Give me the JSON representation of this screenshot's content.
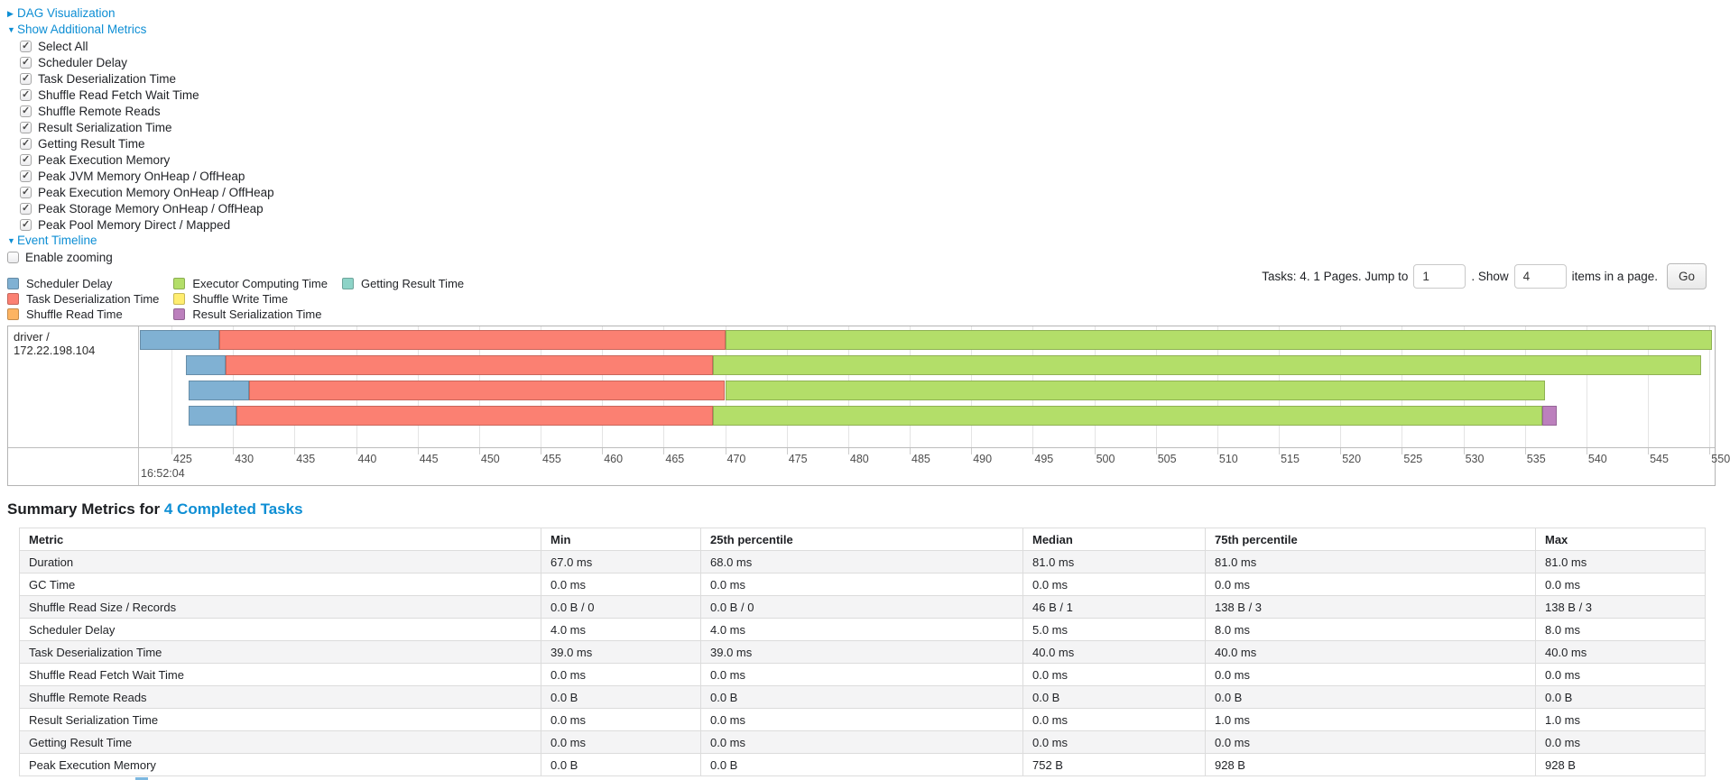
{
  "controls": {
    "collapsed_arrow": "▶",
    "expanded_arrow": "▼",
    "dag_link": "DAG Visualization",
    "metrics_link": "Show Additional Metrics",
    "timeline_link": "Event Timeline",
    "metric_checkboxes": [
      {
        "label": "Select All",
        "checked": true
      },
      {
        "label": "Scheduler Delay",
        "checked": true
      },
      {
        "label": "Task Deserialization Time",
        "checked": true
      },
      {
        "label": "Shuffle Read Fetch Wait Time",
        "checked": true
      },
      {
        "label": "Shuffle Remote Reads",
        "checked": true
      },
      {
        "label": "Result Serialization Time",
        "checked": true
      },
      {
        "label": "Getting Result Time",
        "checked": true
      },
      {
        "label": "Peak Execution Memory",
        "checked": true
      },
      {
        "label": "Peak JVM Memory OnHeap / OffHeap",
        "checked": true
      },
      {
        "label": "Peak Execution Memory OnHeap / OffHeap",
        "checked": true
      },
      {
        "label": "Peak Storage Memory OnHeap / OffHeap",
        "checked": true
      },
      {
        "label": "Peak Pool Memory Direct / Mapped",
        "checked": true
      }
    ],
    "enable_zooming": {
      "label": "Enable zooming",
      "checked": false
    }
  },
  "pagination": {
    "tasks_text": "Tasks: 4. 1 Pages. Jump to",
    "jump_value": "1",
    "show_text": ". Show",
    "show_value": "4",
    "items_text": "items in a page.",
    "go_label": "Go"
  },
  "chart_data": {
    "type": "timeline",
    "group_label": "driver / 172.22.198.104",
    "axis": {
      "unit": "ms",
      "start_label": "16:52:04",
      "ticks": [
        425,
        430,
        435,
        440,
        445,
        450,
        455,
        460,
        465,
        470,
        475,
        480,
        485,
        490,
        495,
        500,
        505,
        510,
        515,
        520,
        525,
        530,
        535,
        540,
        545,
        550
      ],
      "domain": [
        422.36,
        550.42
      ]
    },
    "legend": [
      {
        "key": "scheduler_delay",
        "label": "Scheduler Delay",
        "color": "#80B1D3"
      },
      {
        "key": "task_deserialization",
        "label": "Task Deserialization Time",
        "color": "#FB8072"
      },
      {
        "key": "shuffle_read",
        "label": "Shuffle Read Time",
        "color": "#FDB462"
      },
      {
        "key": "executor_computing",
        "label": "Executor Computing Time",
        "color": "#B3DE69"
      },
      {
        "key": "shuffle_write",
        "label": "Shuffle Write Time",
        "color": "#FFED6F"
      },
      {
        "key": "result_serialization",
        "label": "Result Serialization Time",
        "color": "#BC80BD"
      },
      {
        "key": "getting_result",
        "label": "Getting Result Time",
        "color": "#8DD3C7"
      }
    ],
    "tasks": [
      {
        "segments": [
          {
            "type": "scheduler_delay",
            "from": 422.4,
            "to": 428.9
          },
          {
            "type": "task_deserialization",
            "from": 428.9,
            "to": 470.0
          },
          {
            "type": "executor_computing",
            "from": 470.0,
            "to": 550.2
          }
        ]
      },
      {
        "segments": [
          {
            "type": "scheduler_delay",
            "from": 426.2,
            "to": 429.4
          },
          {
            "type": "task_deserialization",
            "from": 429.4,
            "to": 469.0
          },
          {
            "type": "executor_computing",
            "from": 469.0,
            "to": 549.3
          }
        ]
      },
      {
        "segments": [
          {
            "type": "scheduler_delay",
            "from": 426.4,
            "to": 431.3
          },
          {
            "type": "task_deserialization",
            "from": 431.3,
            "to": 470.0
          },
          {
            "type": "executor_computing",
            "from": 470.0,
            "to": 536.6
          }
        ]
      },
      {
        "segments": [
          {
            "type": "scheduler_delay",
            "from": 426.4,
            "to": 430.3
          },
          {
            "type": "task_deserialization",
            "from": 430.3,
            "to": 469.0
          },
          {
            "type": "executor_computing",
            "from": 469.0,
            "to": 536.4
          },
          {
            "type": "result_serialization",
            "from": 536.4,
            "to": 537.6
          }
        ]
      }
    ]
  },
  "summary": {
    "heading_prefix": "Summary Metrics for",
    "heading_link": "4 Completed Tasks",
    "table": {
      "headers": [
        "Metric",
        "Min",
        "25th percentile",
        "Median",
        "75th percentile",
        "Max"
      ],
      "rows": [
        [
          "Duration",
          "67.0 ms",
          "68.0 ms",
          "81.0 ms",
          "81.0 ms",
          "81.0 ms"
        ],
        [
          "GC Time",
          "0.0 ms",
          "0.0 ms",
          "0.0 ms",
          "0.0 ms",
          "0.0 ms"
        ],
        [
          "Shuffle Read Size / Records",
          "0.0 B / 0",
          "0.0 B / 0",
          "46 B / 1",
          "138 B / 3",
          "138 B / 3"
        ],
        [
          "Scheduler Delay",
          "4.0 ms",
          "4.0 ms",
          "5.0 ms",
          "8.0 ms",
          "8.0 ms"
        ],
        [
          "Task Deserialization Time",
          "39.0 ms",
          "39.0 ms",
          "40.0 ms",
          "40.0 ms",
          "40.0 ms"
        ],
        [
          "Shuffle Read Fetch Wait Time",
          "0.0 ms",
          "0.0 ms",
          "0.0 ms",
          "0.0 ms",
          "0.0 ms"
        ],
        [
          "Shuffle Remote Reads",
          "0.0 B",
          "0.0 B",
          "0.0 B",
          "0.0 B",
          "0.0 B"
        ],
        [
          "Result Serialization Time",
          "0.0 ms",
          "0.0 ms",
          "0.0 ms",
          "1.0 ms",
          "1.0 ms"
        ],
        [
          "Getting Result Time",
          "0.0 ms",
          "0.0 ms",
          "0.0 ms",
          "0.0 ms",
          "0.0 ms"
        ],
        [
          "Peak Execution Memory",
          "0.0 B",
          "0.0 B",
          "752 B",
          "928 B",
          "928 B"
        ]
      ]
    }
  }
}
